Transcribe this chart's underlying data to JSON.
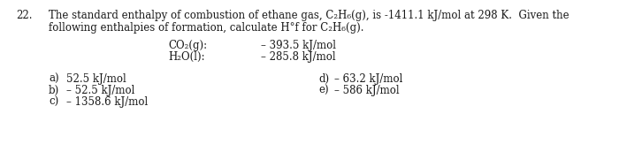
{
  "background_color": "#ffffff",
  "question_number": "22.",
  "question_text_line1": "The standard enthalpy of combustion of ethane gas, C₂H₆(g), is -1411.1 kJ/mol at 298 K.  Given the",
  "question_text_line2": "following enthalpies of formation, calculate H°f for C₂H₆(g).",
  "table_label1": "CO₂(g):",
  "table_value1": "– 393.5 kJ/mol",
  "table_label2": "H₂O(l):",
  "table_value2": "– 285.8 kJ/mol",
  "answers": [
    {
      "letter": "a)",
      "text": "52.5 kJ/mol"
    },
    {
      "letter": "b)",
      "text": "– 52.5 kJ/mol"
    },
    {
      "letter": "c)",
      "text": "– 1358.6 kJ/mol"
    },
    {
      "letter": "d)",
      "text": "– 63.2 kJ/mol"
    },
    {
      "letter": "e)",
      "text": "– 586 kJ/mol"
    }
  ],
  "font_size": 8.5,
  "text_color": "#1a1a1a",
  "font_family": "serif"
}
